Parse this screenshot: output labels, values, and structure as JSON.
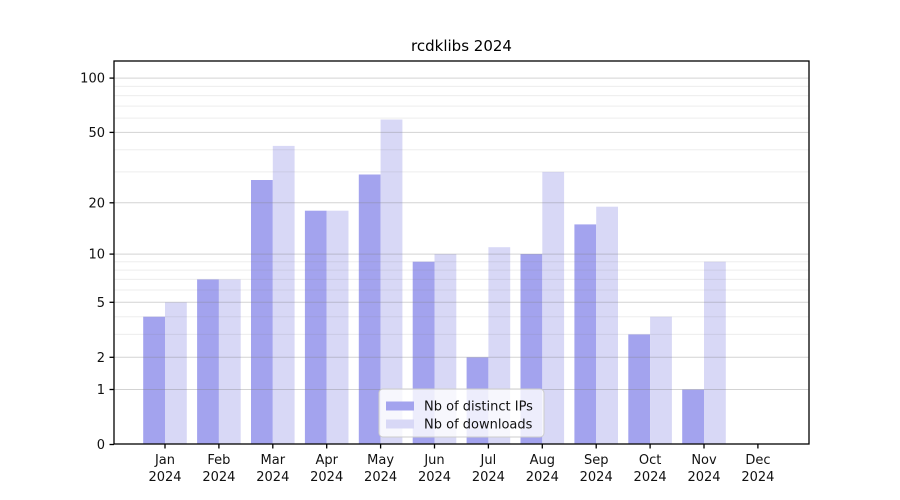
{
  "title": "rcdklibs 2024",
  "colors": {
    "background": "#ffffff",
    "bar_distinct_ips": "#a3a3ee",
    "bar_downloads": "#d8d8f6",
    "axis_spine": "#000000",
    "tick_label": "#111111",
    "major_gridline": "#d3d3d3",
    "minor_gridline": "#ededed",
    "legend_border": "#cccccc",
    "legend_background": "rgba(255,255,255,0.8)"
  },
  "legend": {
    "items": [
      {
        "label": "Nb of distinct IPs",
        "series": "distinct_ips"
      },
      {
        "label": "Nb of downloads",
        "series": "downloads"
      }
    ]
  },
  "chart_data": {
    "type": "bar",
    "title": "rcdklibs 2024",
    "categories": [
      "Jan 2024",
      "Feb 2024",
      "Mar 2024",
      "Apr 2024",
      "May 2024",
      "Jun 2024",
      "Jul 2024",
      "Aug 2024",
      "Sep 2024",
      "Oct 2024",
      "Nov 2024",
      "Dec 2024"
    ],
    "series": [
      {
        "name": "Nb of distinct IPs",
        "color": "#a3a3ee",
        "values": [
          4,
          7,
          27,
          18,
          29,
          9,
          2,
          10,
          15,
          3,
          1,
          0
        ]
      },
      {
        "name": "Nb of downloads",
        "color": "#d8d8f6",
        "values": [
          5,
          7,
          42,
          18,
          59,
          10,
          11,
          30,
          19,
          4,
          9,
          0
        ]
      }
    ],
    "xlabel": "",
    "ylabel": "",
    "y_scale": "log1p: y position proportional to log10(value+1), 0 at baseline",
    "y_major_ticks": [
      0,
      1,
      2,
      5,
      10,
      20,
      50,
      100
    ],
    "y_minor_ticks": [
      3,
      4,
      6,
      7,
      8,
      9,
      30,
      40,
      60,
      70,
      80,
      90
    ],
    "ylim": [
      0,
      125
    ],
    "grid": "horizontal major and minor gridlines, drawn faintly over bars",
    "legend_position": "inside bottom-center"
  }
}
